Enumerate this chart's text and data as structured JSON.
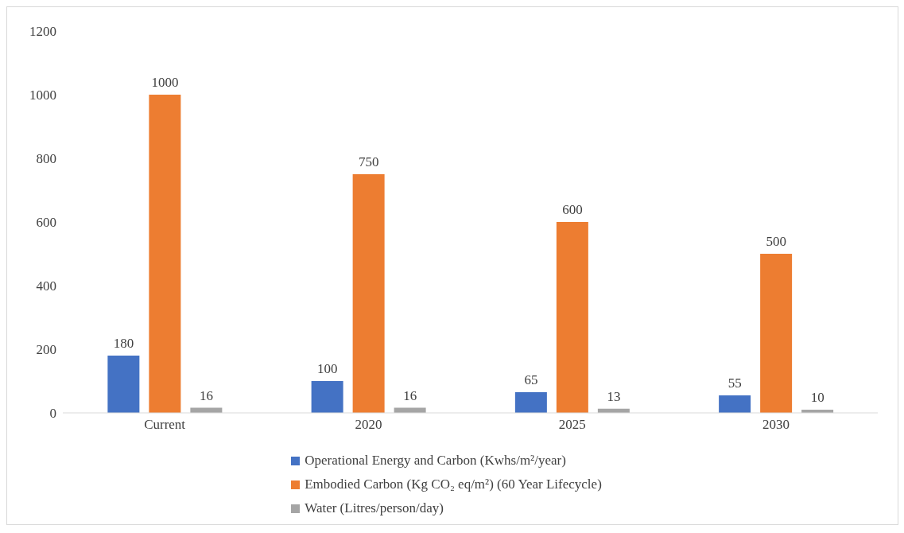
{
  "chart_data": {
    "type": "bar",
    "categories": [
      "Current",
      "2020",
      "2025",
      "2030"
    ],
    "series": [
      {
        "name": "Operational Energy and Carbon (Kwhs/m²/year)",
        "color": "#4472c4",
        "values": [
          180,
          100,
          65,
          55
        ]
      },
      {
        "name": "Embodied Carbon (Kg CO₂ eq/m²) (60 Year Lifecycle)",
        "color": "#ed7d31",
        "values": [
          1000,
          750,
          600,
          500
        ]
      },
      {
        "name": "Water (Litres/person/day)",
        "color": "#a5a5a5",
        "values": [
          16,
          16,
          13,
          10
        ]
      }
    ],
    "ylim": [
      0,
      1200
    ],
    "yticks": [
      0,
      200,
      400,
      600,
      800,
      1000,
      1200
    ],
    "data_labels": true,
    "legend": "bottom",
    "grid": false
  }
}
